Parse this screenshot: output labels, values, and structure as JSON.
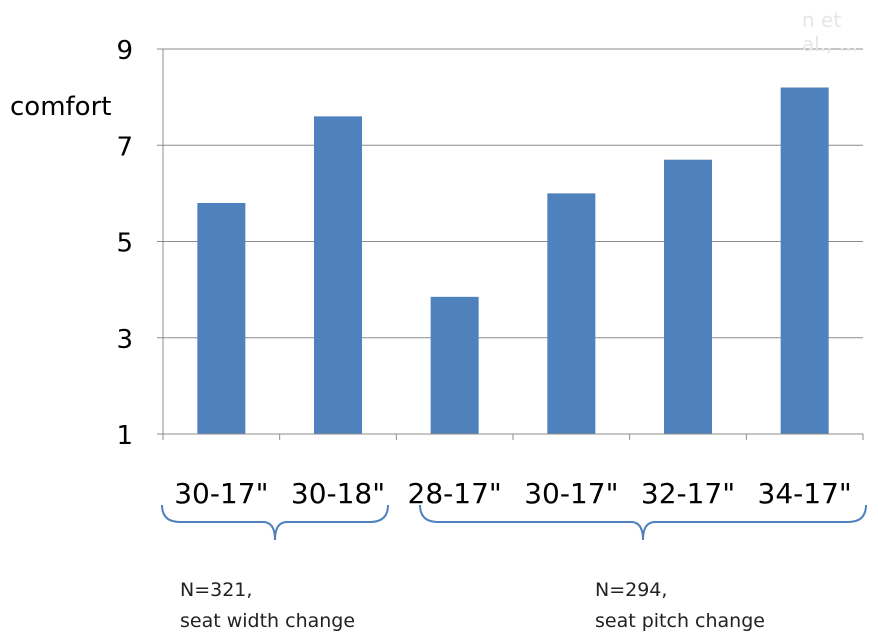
{
  "chart_data": {
    "type": "bar",
    "ylabel": "comfort",
    "ylim": [
      1,
      9
    ],
    "yticks": [
      1,
      3,
      5,
      7,
      9
    ],
    "grid": true,
    "categories": [
      "30-17\"",
      "30-18\"",
      "28-17\"",
      "30-17\"",
      "32-17\"",
      "34-17\""
    ],
    "values": [
      5.8,
      7.6,
      3.85,
      6.0,
      6.7,
      8.2
    ],
    "bar_color": "#4f81bd",
    "groups": [
      {
        "line1": "N=321,",
        "line2": "seat width change"
      },
      {
        "line1": "N=294,",
        "line2": "seat pitch change"
      }
    ]
  },
  "watermark": "n et al., ..."
}
